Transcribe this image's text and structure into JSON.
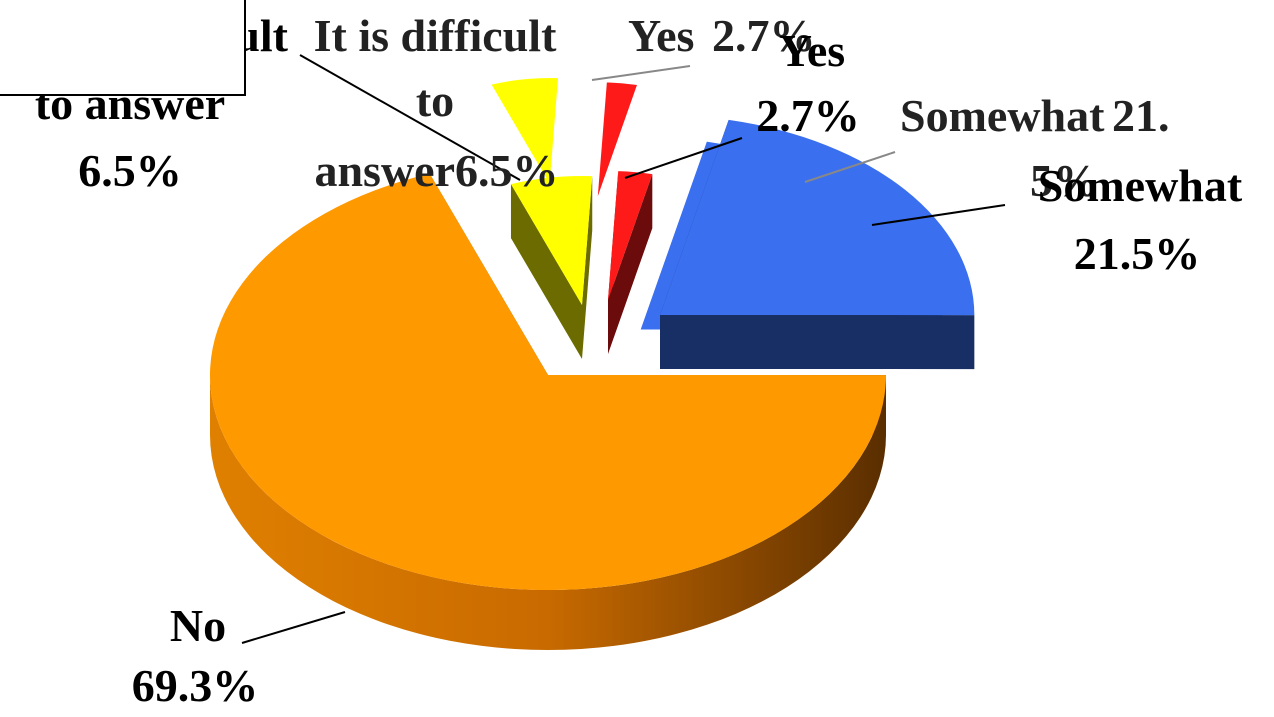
{
  "chart_data": {
    "type": "pie",
    "categories": [
      "Yes",
      "Somewhat",
      "No",
      "It is difficult to answer"
    ],
    "values": [
      2.7,
      21.5,
      69.3,
      6.5
    ],
    "value_labels": [
      "2.7%",
      "21.5%",
      "69.3%",
      "6.5%"
    ],
    "colors": [
      "#ff1a1a",
      "#3a6ff0",
      "#ff9900",
      "#ffff00"
    ]
  }
}
